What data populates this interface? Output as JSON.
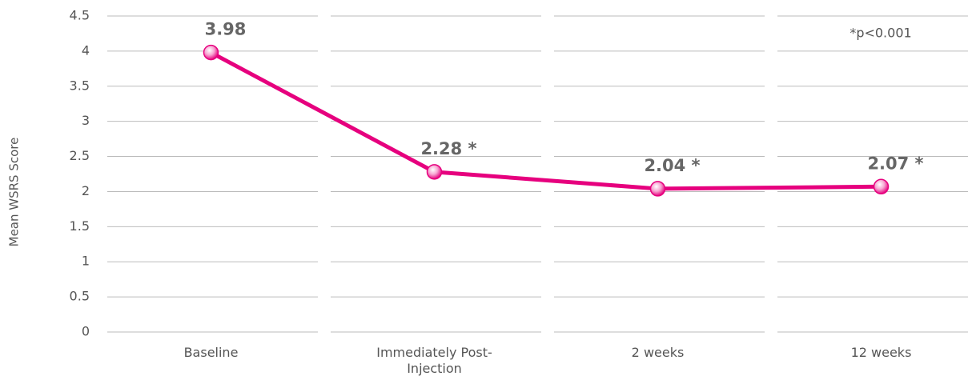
{
  "chart_data": {
    "type": "line",
    "y_label": "Mean WSRS Score",
    "annotation": "*p<0.001",
    "categories": [
      "Baseline",
      "Immediately Post-Injection",
      "2 weeks",
      "12 weeks"
    ],
    "series": [
      {
        "color": "#e6007e",
        "values": [
          3.98,
          2.28,
          2.04,
          2.07
        ],
        "value_labels": [
          "3.98",
          "2.28 *",
          "2.04 *",
          "2.07 *"
        ]
      }
    ],
    "ylim": [
      0,
      4.5
    ],
    "yticks": [
      0,
      0.5,
      1,
      1.5,
      2,
      2.5,
      3,
      3.5,
      4,
      4.5
    ],
    "grid": true
  }
}
